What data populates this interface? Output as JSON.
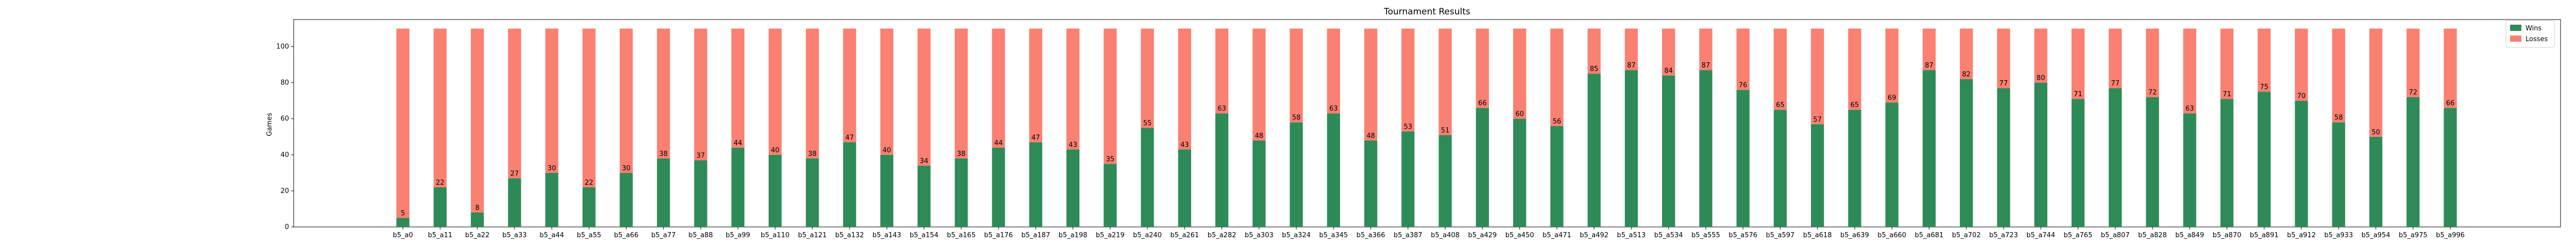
{
  "chart_data": {
    "type": "bar",
    "stacked": true,
    "title": "Tournament Results",
    "xlabel": "",
    "ylabel": "Games",
    "ylim": [
      0,
      115
    ],
    "yticks": [
      0,
      20,
      40,
      60,
      80,
      100
    ],
    "legend_position": "top-right",
    "grid": false,
    "categories": [
      "b5_a0",
      "b5_a11",
      "b5_a22",
      "b5_a33",
      "b5_a44",
      "b5_a55",
      "b5_a66",
      "b5_a77",
      "b5_a88",
      "b5_a99",
      "b5_a110",
      "b5_a121",
      "b5_a132",
      "b5_a143",
      "b5_a154",
      "b5_a165",
      "b5_a176",
      "b5_a187",
      "b5_a198",
      "b5_a219",
      "b5_a240",
      "b5_a261",
      "b5_a282",
      "b5_a303",
      "b5_a324",
      "b5_a345",
      "b5_a366",
      "b5_a387",
      "b5_a408",
      "b5_a429",
      "b5_a450",
      "b5_a471",
      "b5_a492",
      "b5_a513",
      "b5_a534",
      "b5_a555",
      "b5_a576",
      "b5_a597",
      "b5_a618",
      "b5_a639",
      "b5_a660",
      "b5_a681",
      "b5_a702",
      "b5_a723",
      "b5_a744",
      "b5_a765",
      "b5_a807",
      "b5_a828",
      "b5_a849",
      "b5_a870",
      "b5_a891",
      "b5_a912",
      "b5_a933",
      "b5_a954",
      "b5_a975",
      "b5_a996"
    ],
    "series": [
      {
        "name": "Wins",
        "color": "#2e8b57",
        "values": [
          5,
          22,
          8,
          27,
          30,
          22,
          30,
          38,
          37,
          44,
          40,
          38,
          47,
          40,
          34,
          38,
          44,
          47,
          43,
          35,
          55,
          43,
          63,
          48,
          58,
          63,
          48,
          53,
          51,
          66,
          60,
          56,
          85,
          87,
          84,
          87,
          76,
          65,
          57,
          65,
          69,
          87,
          82,
          77,
          80,
          71,
          77,
          72,
          63,
          71,
          75,
          70,
          58,
          50,
          72,
          66
        ]
      },
      {
        "name": "Losses",
        "color": "#fa8072",
        "values": [
          105,
          88,
          102,
          83,
          80,
          88,
          80,
          72,
          73,
          66,
          70,
          72,
          63,
          70,
          76,
          72,
          66,
          63,
          67,
          75,
          55,
          67,
          47,
          62,
          52,
          47,
          62,
          57,
          59,
          44,
          50,
          54,
          25,
          23,
          26,
          23,
          34,
          45,
          53,
          45,
          41,
          23,
          28,
          33,
          30,
          39,
          33,
          38,
          47,
          39,
          35,
          40,
          52,
          60,
          38,
          44
        ]
      }
    ],
    "data_labels": [
      "5",
      "22",
      "8",
      "27",
      "30",
      "22",
      "30",
      "38",
      "37",
      "44",
      "40",
      "38",
      "47",
      "40",
      "34",
      "38",
      "44",
      "47",
      "43",
      "35",
      "55",
      "43",
      "63",
      "48",
      "58",
      "63",
      "48",
      "53",
      "51",
      "66",
      "60",
      "56",
      "85",
      "87",
      "84",
      "87",
      "76",
      "65",
      "57",
      "65",
      "69",
      "87",
      "82",
      "77",
      "80",
      "71",
      "77",
      "72",
      "63",
      "71",
      "75",
      "70",
      "58",
      "50",
      "72",
      "66"
    ]
  }
}
